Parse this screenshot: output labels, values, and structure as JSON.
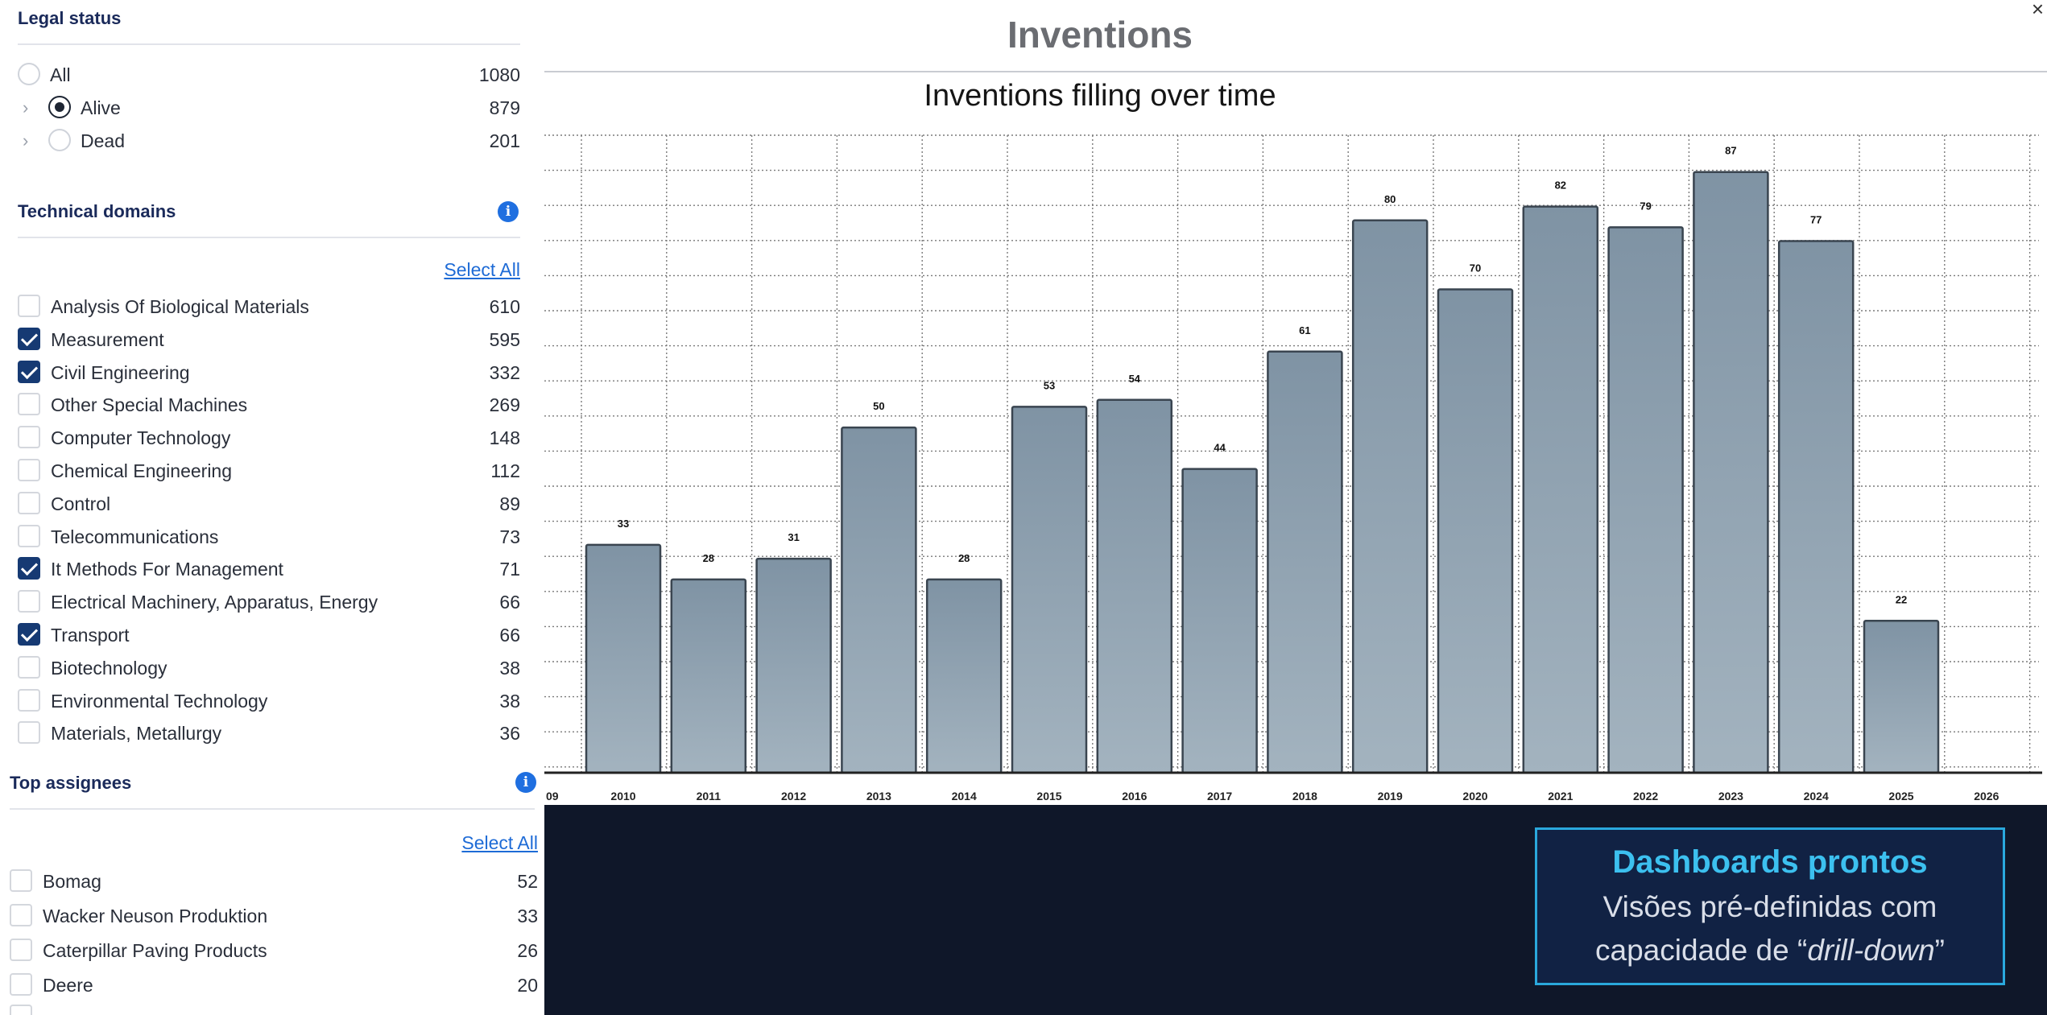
{
  "legal_status": {
    "title": "Legal status",
    "options": [
      {
        "label": "All",
        "count": "1080",
        "selected": false
      },
      {
        "label": "Alive",
        "count": "879",
        "selected": true
      },
      {
        "label": "Dead",
        "count": "201",
        "selected": false
      }
    ]
  },
  "technical_domains": {
    "title": "Technical domains",
    "select_all": "Select All",
    "items": [
      {
        "label": "Analysis Of Biological Materials",
        "count": "610",
        "checked": false
      },
      {
        "label": "Measurement",
        "count": "595",
        "checked": true
      },
      {
        "label": "Civil Engineering",
        "count": "332",
        "checked": true
      },
      {
        "label": "Other Special Machines",
        "count": "269",
        "checked": false
      },
      {
        "label": "Computer Technology",
        "count": "148",
        "checked": false
      },
      {
        "label": "Chemical Engineering",
        "count": "112",
        "checked": false
      },
      {
        "label": "Control",
        "count": "89",
        "checked": false
      },
      {
        "label": "Telecommunications",
        "count": "73",
        "checked": false
      },
      {
        "label": "It Methods For Management",
        "count": "71",
        "checked": true
      },
      {
        "label": "Electrical Machinery, Apparatus, Energy",
        "count": "66",
        "checked": false
      },
      {
        "label": "Transport",
        "count": "66",
        "checked": true
      },
      {
        "label": "Biotechnology",
        "count": "38",
        "checked": false
      },
      {
        "label": "Environmental Technology",
        "count": "38",
        "checked": false
      },
      {
        "label": "Materials, Metallurgy",
        "count": "36",
        "checked": false
      }
    ]
  },
  "top_assignees": {
    "title": "Top assignees",
    "select_all": "Select All",
    "items": [
      {
        "label": "Bomag",
        "count": "52",
        "checked": false
      },
      {
        "label": "Wacker Neuson Produktion",
        "count": "33",
        "checked": false
      },
      {
        "label": "Caterpillar Paving Products",
        "count": "26",
        "checked": false
      },
      {
        "label": "Deere",
        "count": "20",
        "checked": false
      }
    ]
  },
  "header": {
    "title": "Inventions",
    "close": "×"
  },
  "chart_data": {
    "type": "bar",
    "title": "Inventions filling over time",
    "categories": [
      "2010",
      "2011",
      "2012",
      "2013",
      "2014",
      "2015",
      "2016",
      "2017",
      "2018",
      "2019",
      "2020",
      "2021",
      "2022",
      "2023",
      "2024",
      "2025",
      "2026"
    ],
    "values": [
      33,
      28,
      31,
      50,
      28,
      53,
      54,
      44,
      61,
      80,
      70,
      82,
      79,
      87,
      77,
      22,
      0
    ],
    "data_labels": [
      "33",
      "28",
      "31",
      "50",
      "28",
      "53",
      "54",
      "44",
      "61",
      "80",
      "70",
      "82",
      "79",
      "87",
      "77",
      "22",
      ""
    ],
    "partial_left_tick": "09",
    "ylim": [
      0,
      90
    ],
    "grid": true,
    "bar_color": "#8d9fae"
  },
  "callout": {
    "heading": "Dashboards prontos",
    "line1": "Visões pré-definidas com",
    "line2_pre": "capacidade de “",
    "line2_em": "drill-down",
    "line2_post": "”"
  }
}
